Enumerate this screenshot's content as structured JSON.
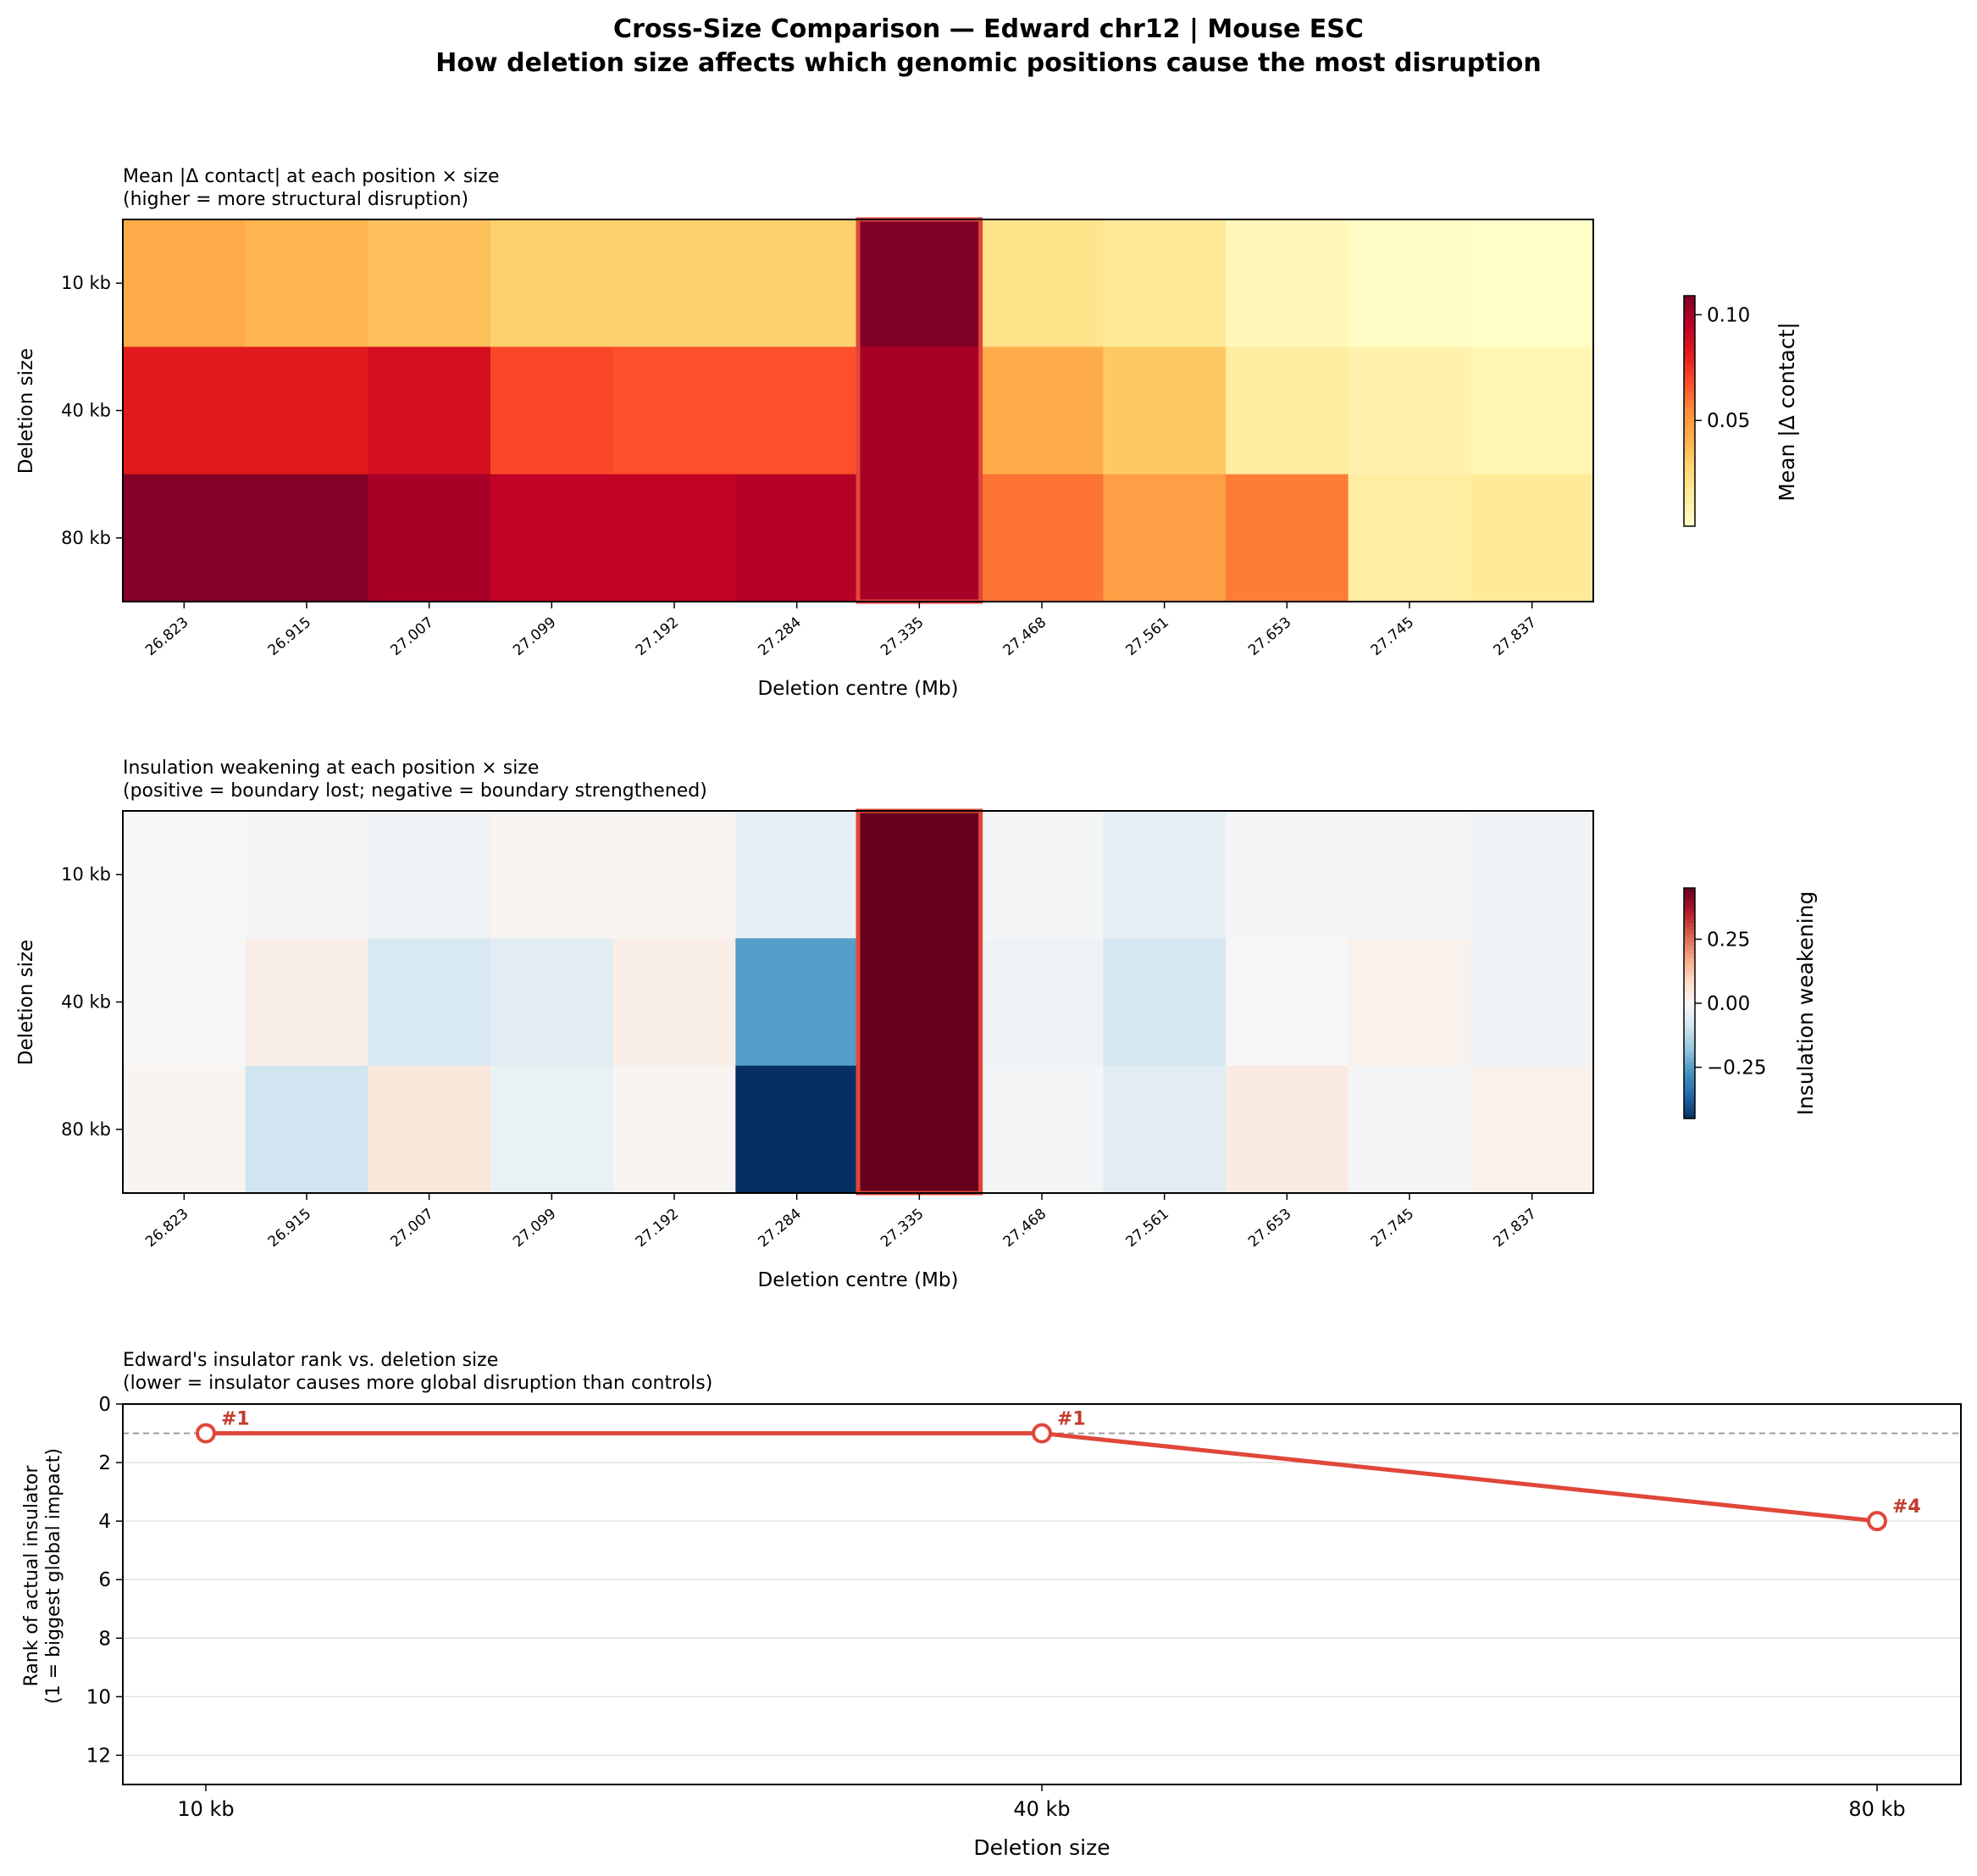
{
  "figure": {
    "title_line1": "Cross-Size Comparison — Edward chr12 | Mouse ESC",
    "title_line2": "How deletion size affects which genomic positions cause the most disruption"
  },
  "colors": {
    "highlight": "#e0473a",
    "rank_line": "#e0473a",
    "rank_label": "#c23b2c",
    "reference_line": "#999999",
    "grid": "#dddddd"
  },
  "chart_data": [
    {
      "type": "heatmap",
      "id": "contact",
      "title_line1": "Mean |Δ contact| at each position × size",
      "title_line2": "(higher = more structural disruption)",
      "xlabel": "Deletion centre (Mb)",
      "ylabel": "Deletion size",
      "x_categories": [
        "26.823",
        "26.915",
        "27.007",
        "27.099",
        "27.192",
        "27.284",
        "27.335",
        "27.468",
        "27.561",
        "27.653",
        "27.745",
        "27.837"
      ],
      "y_categories": [
        "10 kb",
        "40 kb",
        "80 kb"
      ],
      "highlight_index": 6,
      "values": [
        [
          0.044,
          0.04,
          0.036,
          0.03,
          0.03,
          0.03,
          0.109,
          0.02,
          0.016,
          0.006,
          0.002,
          0.001
        ],
        [
          0.082,
          0.082,
          0.087,
          0.07,
          0.068,
          0.068,
          0.1,
          0.043,
          0.033,
          0.014,
          0.01,
          0.007
        ],
        [
          0.108,
          0.108,
          0.1,
          0.094,
          0.094,
          0.097,
          0.1,
          0.06,
          0.048,
          0.058,
          0.013,
          0.016
        ]
      ],
      "colormap": "YlOrRd",
      "vmin": 0.0,
      "vmax": 0.109,
      "colorbar": {
        "label": "Mean |Δ contact|",
        "ticks": [
          0.05,
          0.1
        ],
        "tick_labels": [
          "0.05",
          "0.10"
        ]
      }
    },
    {
      "type": "heatmap",
      "id": "insulation",
      "title_line1": "Insulation weakening at each position × size",
      "title_line2": "(positive = boundary lost; negative = boundary strengthened)",
      "xlabel": "Deletion centre (Mb)",
      "ylabel": "Deletion size",
      "x_categories": [
        "26.823",
        "26.915",
        "27.007",
        "27.099",
        "27.192",
        "27.284",
        "27.335",
        "27.468",
        "27.561",
        "27.653",
        "27.745",
        "27.837"
      ],
      "y_categories": [
        "10 kb",
        "40 kb",
        "80 kb"
      ],
      "highlight_index": 6,
      "values": [
        [
          0.0,
          -0.01,
          -0.02,
          0.01,
          0.01,
          -0.04,
          0.45,
          -0.01,
          -0.04,
          -0.01,
          -0.01,
          -0.02
        ],
        [
          0.0,
          0.03,
          -0.07,
          -0.05,
          0.03,
          -0.25,
          0.45,
          -0.02,
          -0.08,
          0.0,
          0.02,
          -0.02
        ],
        [
          0.01,
          -0.09,
          0.05,
          -0.03,
          0.01,
          -0.45,
          0.45,
          -0.01,
          -0.05,
          0.04,
          -0.01,
          0.02
        ]
      ],
      "colormap": "RdBu_r",
      "vmin": -0.45,
      "vmax": 0.45,
      "colorbar": {
        "label": "Insulation weakening",
        "ticks": [
          -0.25,
          0.0,
          0.25
        ],
        "tick_labels": [
          "−0.25",
          "0.00",
          "0.25"
        ]
      }
    },
    {
      "type": "line",
      "id": "rank",
      "title_line1": "Edward's insulator rank vs. deletion size",
      "title_line2": "(lower = insulator causes more global disruption than controls)",
      "xlabel": "Deletion size",
      "ylabel_line1": "Rank of actual insulator",
      "ylabel_line2": "(1 = biggest global impact)",
      "categories": [
        "10 kb",
        "40 kb",
        "80 kb"
      ],
      "values": [
        1,
        1,
        4
      ],
      "point_labels": [
        "#1",
        "#1",
        "#4"
      ],
      "ylim": [
        13,
        0
      ],
      "yticks": [
        0,
        2,
        4,
        6,
        8,
        10,
        12
      ],
      "reference_line": 1
    }
  ]
}
